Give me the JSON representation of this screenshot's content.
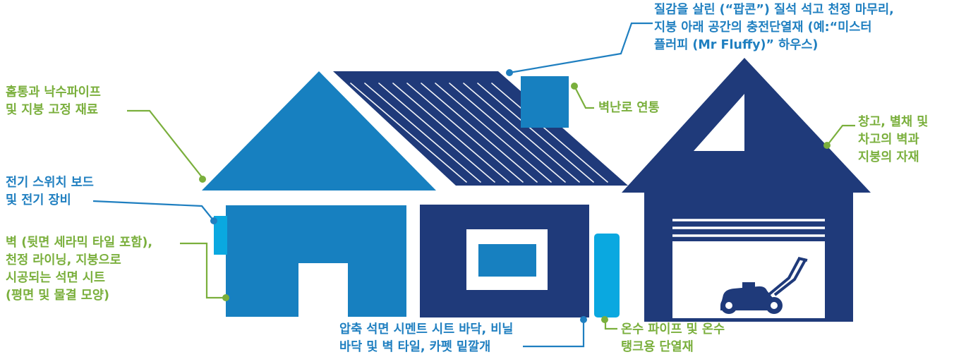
{
  "colors": {
    "dark_navy": "#1f3a7a",
    "medium_blue": "#1780c0",
    "light_blue": "#0aa8e0",
    "green_label": "#7aaf3c",
    "blue_label": "#1f7fc0",
    "white": "#ffffff"
  },
  "labels": {
    "ceiling": {
      "lines": [
        "질감을 살린 (“팝콘”) 질석 석고 천정 마무리,",
        "지붕 아래 공간의 충전단열재 (예:“미스터",
        "플러피 (Mr Fluffy)” 하우스)"
      ],
      "color": "blue"
    },
    "gutters": {
      "lines": [
        "홈통과 낙수파이프",
        "및 지붕 고정 재료"
      ],
      "color": "green"
    },
    "flue": {
      "lines": [
        "벽난로 연통"
      ],
      "color": "green"
    },
    "garage": {
      "lines": [
        "창고, 별채 및",
        "차고의 벽과",
        "지붕의 자재"
      ],
      "color": "green"
    },
    "switchboard": {
      "lines": [
        "전기 스위치 보드",
        "및 전기 장비"
      ],
      "color": "blue"
    },
    "walls": {
      "lines": [
        "벽 (뒷면 세라믹 타일 포함),",
        "천정 라이닝, 지붕으로",
        "시공되는 석면 시트",
        "(평면 및 물결 모양)"
      ],
      "color": "green"
    },
    "flooring": {
      "lines": [
        "압축 석면 시멘트 시트 바닥, 비닐",
        "바닥 및 벽 타일, 카펫 밑깔개"
      ],
      "color": "blue"
    },
    "hotwater": {
      "lines": [
        "온수 파이프 및 온수",
        "탱크용 단열재"
      ],
      "color": "green"
    }
  },
  "icons": {
    "lawnmower": "lawnmower-icon"
  }
}
